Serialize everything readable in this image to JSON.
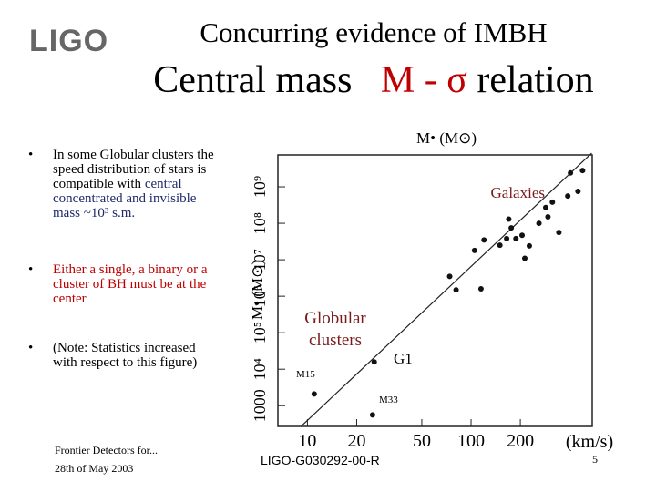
{
  "header": {
    "logo": "LIGO",
    "title": "Concurring evidence of IMBH",
    "subtitle": [
      "Central mass",
      "M - σ",
      "relation"
    ]
  },
  "bullets": [
    {
      "parts": [
        "In some Globular clusters the speed distribution of stars is compatible with",
        "central concentrated and invisible mass ~10³ s.m."
      ]
    },
    {
      "parts": [
        "Either a single, a binary or a cluster of BH must be at the center"
      ]
    },
    {
      "parts": [
        "(Note: Statistics increased with respect to this figure)"
      ]
    }
  ],
  "chart_data": {
    "type": "scatter",
    "x_label": "(km/s)",
    "y_label": "M• (M⊙)",
    "top_label": "M• (M⊙)",
    "xlog": true,
    "ylog": true,
    "xlim": [
      6.6,
      550
    ],
    "ylim": [
      270,
      7500000000
    ],
    "xticks": [
      10,
      20,
      50,
      100,
      200
    ],
    "yticks": [
      1000,
      {
        "value": 10000,
        "label": "10⁴"
      },
      {
        "value": 100000,
        "label": "10⁵"
      },
      {
        "value": 1000000,
        "label": "10⁶"
      },
      {
        "value": 10000000,
        "label": "10⁷"
      },
      {
        "value": 100000000,
        "label": "10⁸"
      },
      {
        "value": 1000000000,
        "label": "10⁹"
      }
    ],
    "color": "#111111",
    "x": [
      11,
      25.6,
      25,
      74,
      81,
      105,
      115,
      120,
      150,
      165,
      176,
      188,
      205,
      213,
      227,
      260,
      286,
      295,
      314,
      344,
      390,
      405,
      450,
      480,
      170
    ],
    "values": [
      2100,
      15800,
      560,
      3500000,
      1500000,
      18000000,
      1600000,
      35000000,
      25000000,
      38000000,
      75000000,
      38000000,
      47000000,
      11000000,
      24000000,
      100000000,
      270000000,
      150000000,
      380000000,
      56000000,
      560000000,
      2400000000,
      750000000,
      2800000000,
      130000000
    ],
    "fit_line": {
      "x": [
        9.1,
        546
      ],
      "y": [
        266,
        8400000000
      ]
    },
    "annotations": {
      "galaxies": "Galaxies",
      "globular": [
        "Globular",
        "clusters"
      ],
      "g1": "G1",
      "m15": "M15",
      "m33": "M33"
    }
  },
  "footer": {
    "left": [
      "Frontier Detectors for...",
      "28th of May 2003"
    ],
    "center": "LIGO-G030292-00-R",
    "page": "5"
  }
}
